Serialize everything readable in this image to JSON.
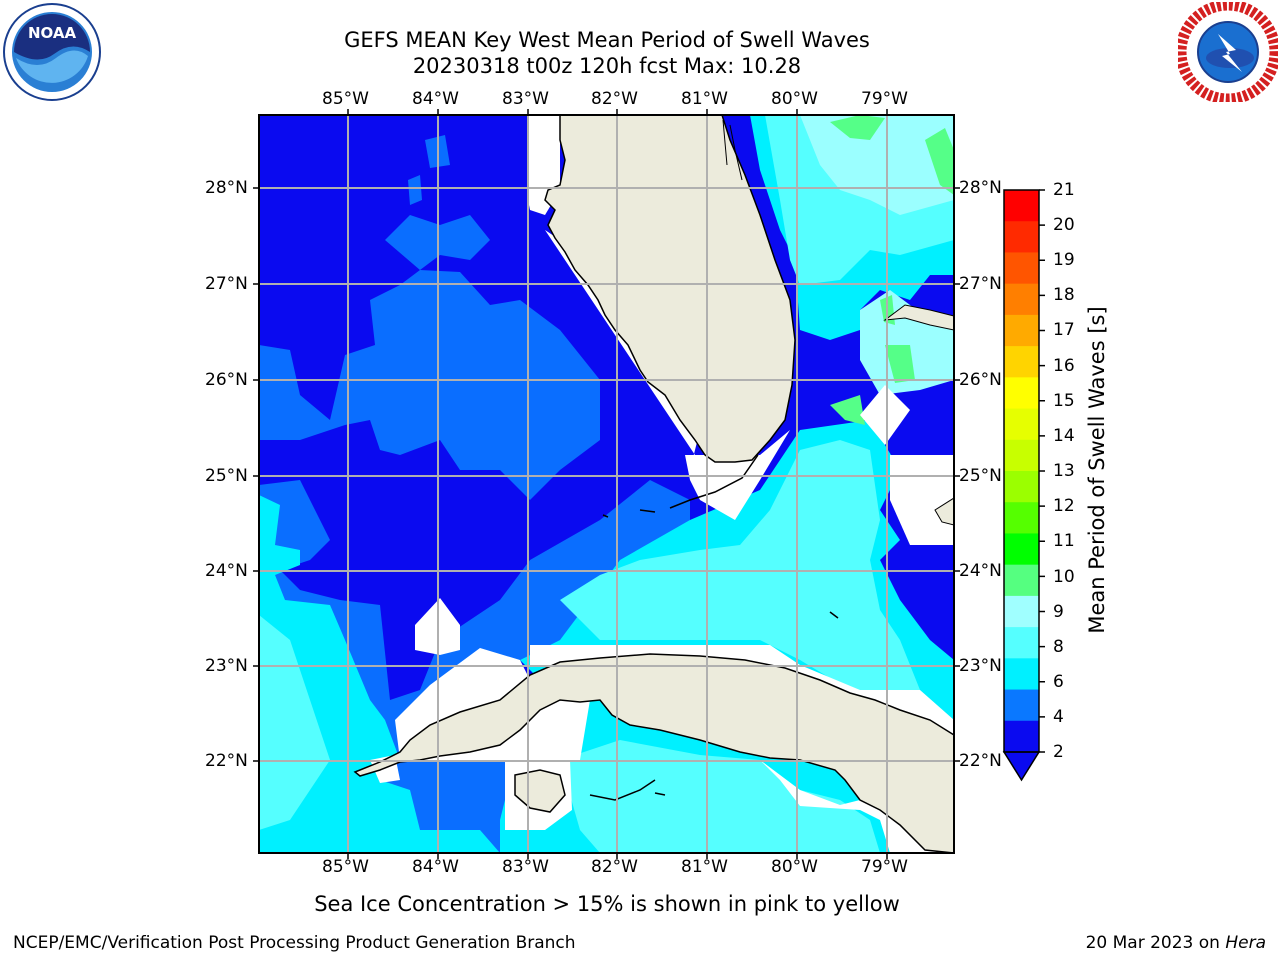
{
  "title": {
    "line1": "GEFS MEAN Key West Mean Period of Swell Waves",
    "line2": "20230318 t00z 120h fcst   Max: 10.28"
  },
  "map": {
    "lon_labels": [
      "85°W",
      "84°W",
      "83°W",
      "82°W",
      "81°W",
      "80°W",
      "79°W"
    ],
    "lat_labels": [
      "28°N",
      "27°N",
      "26°N",
      "25°N",
      "24°N",
      "23°N",
      "22°N"
    ],
    "colors": {
      "land": "#ecebdc",
      "coast": "#000000",
      "grid": "#b0b0b0",
      "level_2_4": "#0a0af0",
      "level_4_6": "#0a6eff",
      "level_6_8": "#00f0ff",
      "level_8_9": "#55ffff",
      "level_9_10": "#9bffff",
      "level_10_11": "#55ff88"
    }
  },
  "colorbar": {
    "label": "Mean Period of Swell Waves [s]",
    "ticks": [
      "21",
      "20",
      "19",
      "18",
      "17",
      "16",
      "15",
      "14",
      "13",
      "12",
      "11",
      "10",
      "9",
      "8",
      "6",
      "4",
      "2"
    ],
    "colors_top_down": [
      "#ff0000",
      "#ff2a00",
      "#ff5500",
      "#ff7f00",
      "#ffaa00",
      "#ffd400",
      "#ffff00",
      "#e6ff00",
      "#c8ff00",
      "#9bff00",
      "#55ff00",
      "#00ff00",
      "#55ff80",
      "#a0ffff",
      "#55ffff",
      "#00f0ff",
      "#0a78ff",
      "#0a0af0"
    ]
  },
  "note": "Sea Ice Concentration > 15% is shown in pink to yellow",
  "footer": {
    "left": "NCEP/EMC/Verification Post Processing Product Generation Branch",
    "date": "20 Mar 2023 on ",
    "host": "Hera"
  },
  "logos": {
    "left": "NOAA",
    "right": "NATIONAL WEATHER SERVICE"
  }
}
